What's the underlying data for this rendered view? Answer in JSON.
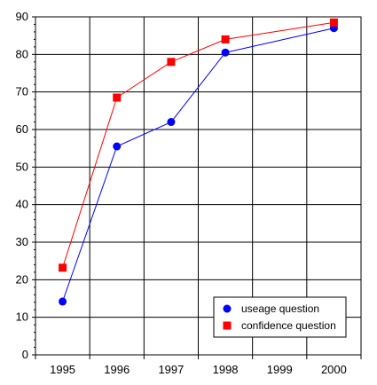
{
  "chart_data": {
    "type": "line",
    "title": "",
    "xlabel": "",
    "ylabel": "",
    "categories": [
      "1995",
      "1996",
      "1997",
      "1998",
      "1999",
      "2000"
    ],
    "ylim": [
      0,
      90
    ],
    "y_ticks": [
      0,
      10,
      20,
      30,
      40,
      50,
      60,
      70,
      80,
      90
    ],
    "grid": true,
    "legend_position": "bottom-right",
    "series": [
      {
        "name": "useage question",
        "marker": "circle",
        "color": "#0000ff",
        "x": [
          1995,
          1996,
          1997,
          1998,
          2000
        ],
        "values": [
          14.2,
          55.5,
          62.0,
          80.5,
          87.0
        ]
      },
      {
        "name": "confidence question",
        "marker": "square",
        "color": "#ff0000",
        "x": [
          1995,
          1996,
          1997,
          1998,
          2000
        ],
        "values": [
          23.2,
          68.5,
          78.0,
          84.0,
          88.5
        ]
      }
    ]
  }
}
